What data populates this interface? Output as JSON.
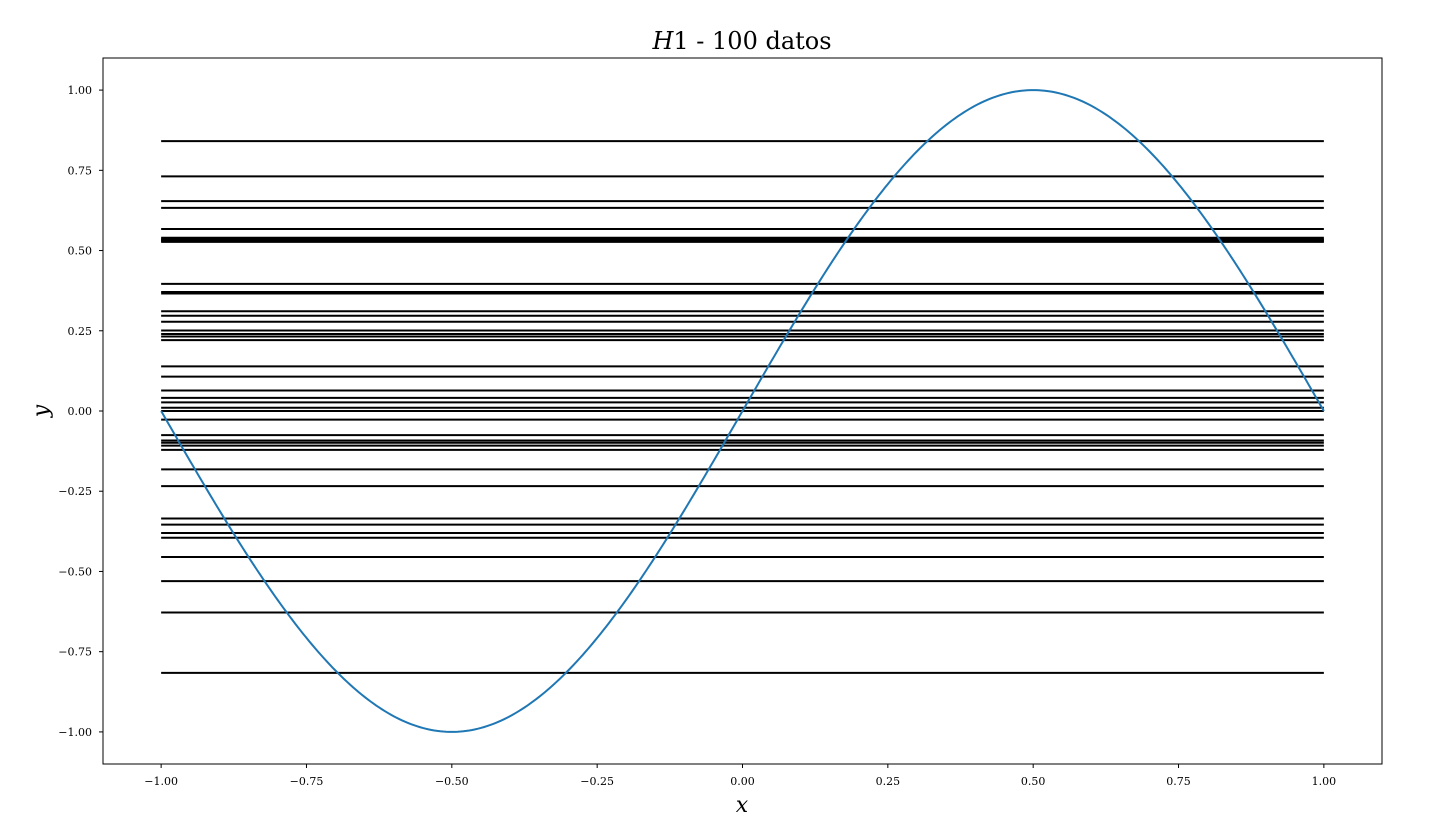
{
  "chart_data": {
    "type": "line",
    "title": "H1 - 100 datos",
    "title_parts": {
      "italic": "H",
      "rest": "1 - 100 datos"
    },
    "xlabel": "x",
    "ylabel": "y",
    "xlim": [
      -1.1,
      1.1
    ],
    "ylim": [
      -1.1,
      1.1
    ],
    "x_ticks": [
      -1.0,
      -0.75,
      -0.5,
      -0.25,
      0.0,
      0.25,
      0.5,
      0.75,
      1.0
    ],
    "x_tick_labels": [
      "−1.00",
      "−0.75",
      "−0.50",
      "−0.25",
      "0.00",
      "0.25",
      "0.50",
      "0.75",
      "1.00"
    ],
    "y_ticks": [
      1.0,
      0.75,
      0.5,
      0.25,
      0.0,
      -0.25,
      -0.5,
      -0.75,
      -1.0
    ],
    "y_tick_labels": [
      "1.00",
      "0.75",
      "0.50",
      "0.25",
      "0.00",
      "−0.25",
      "−0.50",
      "−0.75",
      "−1.00"
    ],
    "grid": false,
    "target_function": {
      "name": "sin(pi x)",
      "color": "#1f77b4",
      "x_range": [
        -1.0,
        1.0
      ]
    },
    "hypotheses": {
      "color": "#000000",
      "x_range": [
        -1.0,
        1.0
      ],
      "y_values": [
        0.841,
        0.731,
        0.654,
        0.633,
        0.567,
        0.54,
        0.536,
        0.533,
        0.53,
        0.527,
        0.396,
        0.371,
        0.366,
        0.311,
        0.297,
        0.278,
        0.251,
        0.24,
        0.232,
        0.221,
        0.139,
        0.107,
        0.064,
        0.041,
        0.027,
        0.01,
        0.0,
        -0.027,
        -0.075,
        -0.092,
        -0.099,
        -0.108,
        -0.121,
        -0.182,
        -0.234,
        -0.335,
        -0.354,
        -0.38,
        -0.395,
        -0.455,
        -0.53,
        -0.628,
        -0.816
      ]
    }
  }
}
